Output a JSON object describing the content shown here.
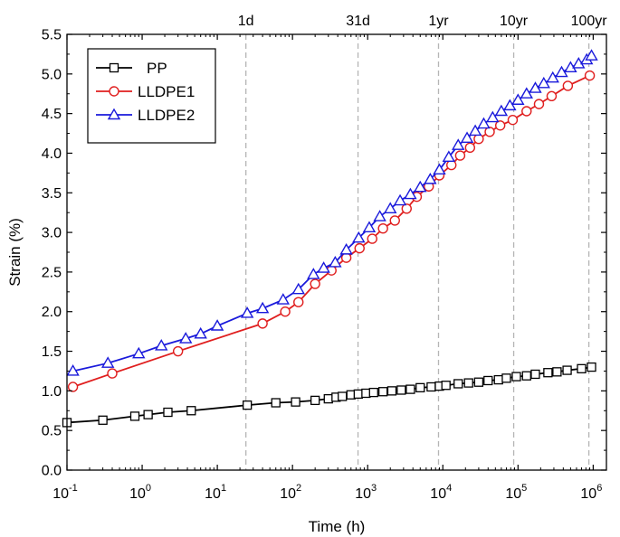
{
  "chart_data": {
    "type": "line",
    "title": "",
    "xlabel": "Time (h)",
    "ylabel": "Strain (%)",
    "xscale": "log",
    "xlim": [
      0.1,
      1500000
    ],
    "ylim": [
      0.0,
      5.5
    ],
    "yticks": [
      "0.0",
      "0.5",
      "1.0",
      "1.5",
      "2.0",
      "2.5",
      "3.0",
      "3.5",
      "4.0",
      "4.5",
      "5.0",
      "5.5"
    ],
    "ytick_values": [
      0.0,
      0.5,
      1.0,
      1.5,
      2.0,
      2.5,
      3.0,
      3.5,
      4.0,
      4.5,
      5.0,
      5.5
    ],
    "xticks": [
      {
        "value": 0.1,
        "base": "10",
        "exp": "-1"
      },
      {
        "value": 1,
        "base": "10",
        "exp": "0"
      },
      {
        "value": 10,
        "base": "10",
        "exp": "1"
      },
      {
        "value": 100,
        "base": "10",
        "exp": "2"
      },
      {
        "value": 1000,
        "base": "10",
        "exp": "3"
      },
      {
        "value": 10000,
        "base": "10",
        "exp": "4"
      },
      {
        "value": 100000,
        "base": "10",
        "exp": "5"
      },
      {
        "value": 1000000,
        "base": "10",
        "exp": "6"
      }
    ],
    "reference_lines": [
      {
        "label": "1d",
        "x": 24
      },
      {
        "label": "31d",
        "x": 744
      },
      {
        "label": "1yr",
        "x": 8760
      },
      {
        "label": "10yr",
        "x": 87600
      },
      {
        "label": "100yr",
        "x": 876000
      }
    ],
    "legend_position": "top-left",
    "series": [
      {
        "name": "PP",
        "color": "#000000",
        "marker": "square",
        "x": [
          0.1,
          0.3,
          0.8,
          1.2,
          2.2,
          4.5,
          25,
          60,
          110,
          200,
          300,
          380,
          460,
          600,
          750,
          950,
          1200,
          1600,
          2100,
          2800,
          3700,
          5000,
          7000,
          9000,
          11000,
          16000,
          22000,
          30000,
          40000,
          55000,
          70000,
          95000,
          130000,
          170000,
          250000,
          330000,
          450000,
          700000,
          950000
        ],
        "y": [
          0.6,
          0.63,
          0.68,
          0.7,
          0.73,
          0.75,
          0.82,
          0.85,
          0.86,
          0.88,
          0.9,
          0.92,
          0.93,
          0.95,
          0.96,
          0.97,
          0.98,
          0.99,
          1.0,
          1.01,
          1.02,
          1.04,
          1.05,
          1.06,
          1.07,
          1.09,
          1.1,
          1.11,
          1.13,
          1.14,
          1.16,
          1.18,
          1.19,
          1.21,
          1.23,
          1.24,
          1.26,
          1.28,
          1.3
        ]
      },
      {
        "name": "LLDPE1",
        "color": "#e01e1e",
        "marker": "circle",
        "x": [
          0.12,
          0.4,
          3.0,
          40,
          80,
          120,
          200,
          330,
          520,
          780,
          1150,
          1600,
          2300,
          3300,
          4500,
          6500,
          9000,
          13000,
          17000,
          23000,
          30000,
          42000,
          58000,
          85000,
          130000,
          190000,
          280000,
          460000,
          900000
        ],
        "y": [
          1.05,
          1.22,
          1.5,
          1.85,
          2.0,
          2.12,
          2.35,
          2.52,
          2.68,
          2.8,
          2.92,
          3.05,
          3.15,
          3.3,
          3.45,
          3.58,
          3.72,
          3.85,
          3.97,
          4.07,
          4.18,
          4.27,
          4.35,
          4.42,
          4.53,
          4.62,
          4.72,
          4.85,
          4.98
        ]
      },
      {
        "name": "LLDPE2",
        "color": "#1a1adb",
        "marker": "triangle",
        "x": [
          0.12,
          0.35,
          0.9,
          1.8,
          3.8,
          6.0,
          10,
          25,
          40,
          75,
          120,
          190,
          260,
          370,
          520,
          760,
          1050,
          1450,
          2000,
          2700,
          3700,
          5000,
          6800,
          9000,
          12000,
          16000,
          21000,
          27000,
          35000,
          46000,
          60000,
          78000,
          100000,
          130000,
          170000,
          220000,
          290000,
          380000,
          500000,
          640000,
          820000,
          950000
        ],
        "y": [
          1.25,
          1.35,
          1.47,
          1.57,
          1.66,
          1.72,
          1.82,
          1.98,
          2.04,
          2.15,
          2.28,
          2.47,
          2.55,
          2.62,
          2.78,
          2.93,
          3.06,
          3.2,
          3.3,
          3.4,
          3.48,
          3.57,
          3.67,
          3.79,
          3.95,
          4.1,
          4.19,
          4.28,
          4.37,
          4.45,
          4.53,
          4.6,
          4.67,
          4.75,
          4.82,
          4.88,
          4.95,
          5.02,
          5.08,
          5.13,
          5.18,
          5.23
        ]
      }
    ]
  }
}
